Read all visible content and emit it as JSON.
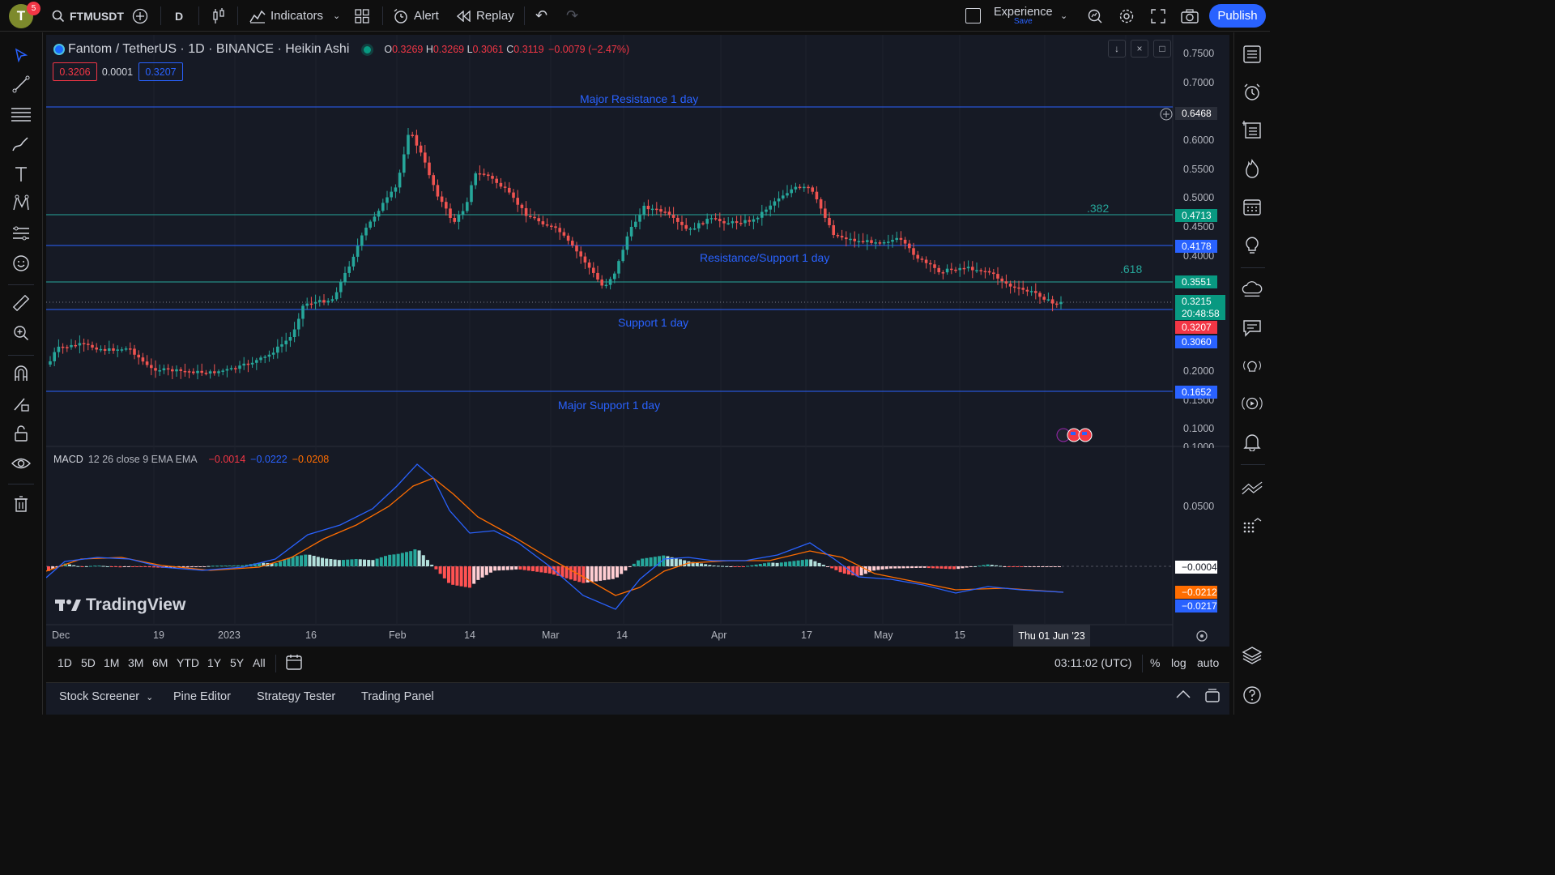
{
  "topbar": {
    "avatar_letter": "T",
    "notifications": "5",
    "symbol": "FTMUSDT",
    "interval": "D",
    "indicators": "Indicators",
    "alert": "Alert",
    "replay": "Replay",
    "layout_name": "Experience",
    "layout_status": "Save",
    "publish": "Publish"
  },
  "legend": {
    "title": "Fantom / TetherUS · 1D · BINANCE · Heikin Ashi",
    "o_label": "O",
    "o": "0.3269",
    "h_label": "H",
    "h": "0.3269",
    "l_label": "L",
    "l": "0.3061",
    "c_label": "C",
    "c": "0.3119",
    "change": "−0.0079 (−2.47%)",
    "bid": "0.3206",
    "spread": "0.0001",
    "ask": "0.3207"
  },
  "price_axis": {
    "ticks": [
      "0.7500",
      "0.7000",
      "0.6000",
      "0.5500",
      "0.5000",
      "0.4500",
      "0.4000",
      "0.2000",
      "0.1500",
      "0.1000",
      "0.1000"
    ],
    "labels": [
      {
        "text": "0.6468",
        "bg": "#2a2e39"
      },
      {
        "text": "0.4713",
        "bg": "#089981"
      },
      {
        "text": "0.4178",
        "bg": "#2962ff"
      },
      {
        "text": "0.3551",
        "bg": "#089981"
      },
      {
        "text": "0.3215",
        "bg": "#089981"
      },
      {
        "text": "20:48:58",
        "bg": "#089981"
      },
      {
        "text": "0.3207",
        "bg": "#f23645"
      },
      {
        "text": "0.3060",
        "bg": "#2962ff"
      },
      {
        "text": "0.1652",
        "bg": "#2962ff"
      }
    ]
  },
  "levels": {
    "major_resistance": "Major Resistance 1 day",
    "resistance_support": "Resistance/Support 1 day",
    "support": "Support 1 day",
    "major_support": "Major Support 1 day",
    "fib_382": ".382",
    "fib_618": ".618"
  },
  "macd": {
    "name": "MACD",
    "params": "12 26 close 9 EMA EMA",
    "hist": "−0.0014",
    "macd": "−0.0222",
    "signal": "−0.0208",
    "axis_tick": "0.0500",
    "labels": [
      {
        "text": "−0.0004",
        "bg": "#ffffff",
        "color": "#131722"
      },
      {
        "text": "−0.0212",
        "bg": "#ff6d00",
        "color": "#ffffff"
      },
      {
        "text": "−0.0217",
        "bg": "#2962ff",
        "color": "#ffffff"
      }
    ]
  },
  "time_axis": {
    "ticks": [
      "Dec",
      "19",
      "2023",
      "16",
      "Feb",
      "14",
      "Mar",
      "14",
      "Apr",
      "17",
      "May",
      "15",
      "14"
    ],
    "crosshair": "Thu 01 Jun '23"
  },
  "bottom": {
    "ranges": [
      "1D",
      "5D",
      "1M",
      "3M",
      "6M",
      "YTD",
      "1Y",
      "5Y",
      "All"
    ],
    "clock": "03:11:02 (UTC)",
    "pct": "%",
    "log": "log",
    "auto": "auto"
  },
  "panels": [
    "Stock Screener",
    "Pine Editor",
    "Strategy Tester",
    "Trading Panel"
  ],
  "brand": "TradingView",
  "colors": {
    "up": "#26a69a",
    "down": "#ef5350",
    "level": "#2962ff",
    "fib": "#26a69a",
    "macd": "#2962ff",
    "signal": "#ff6d00"
  }
}
